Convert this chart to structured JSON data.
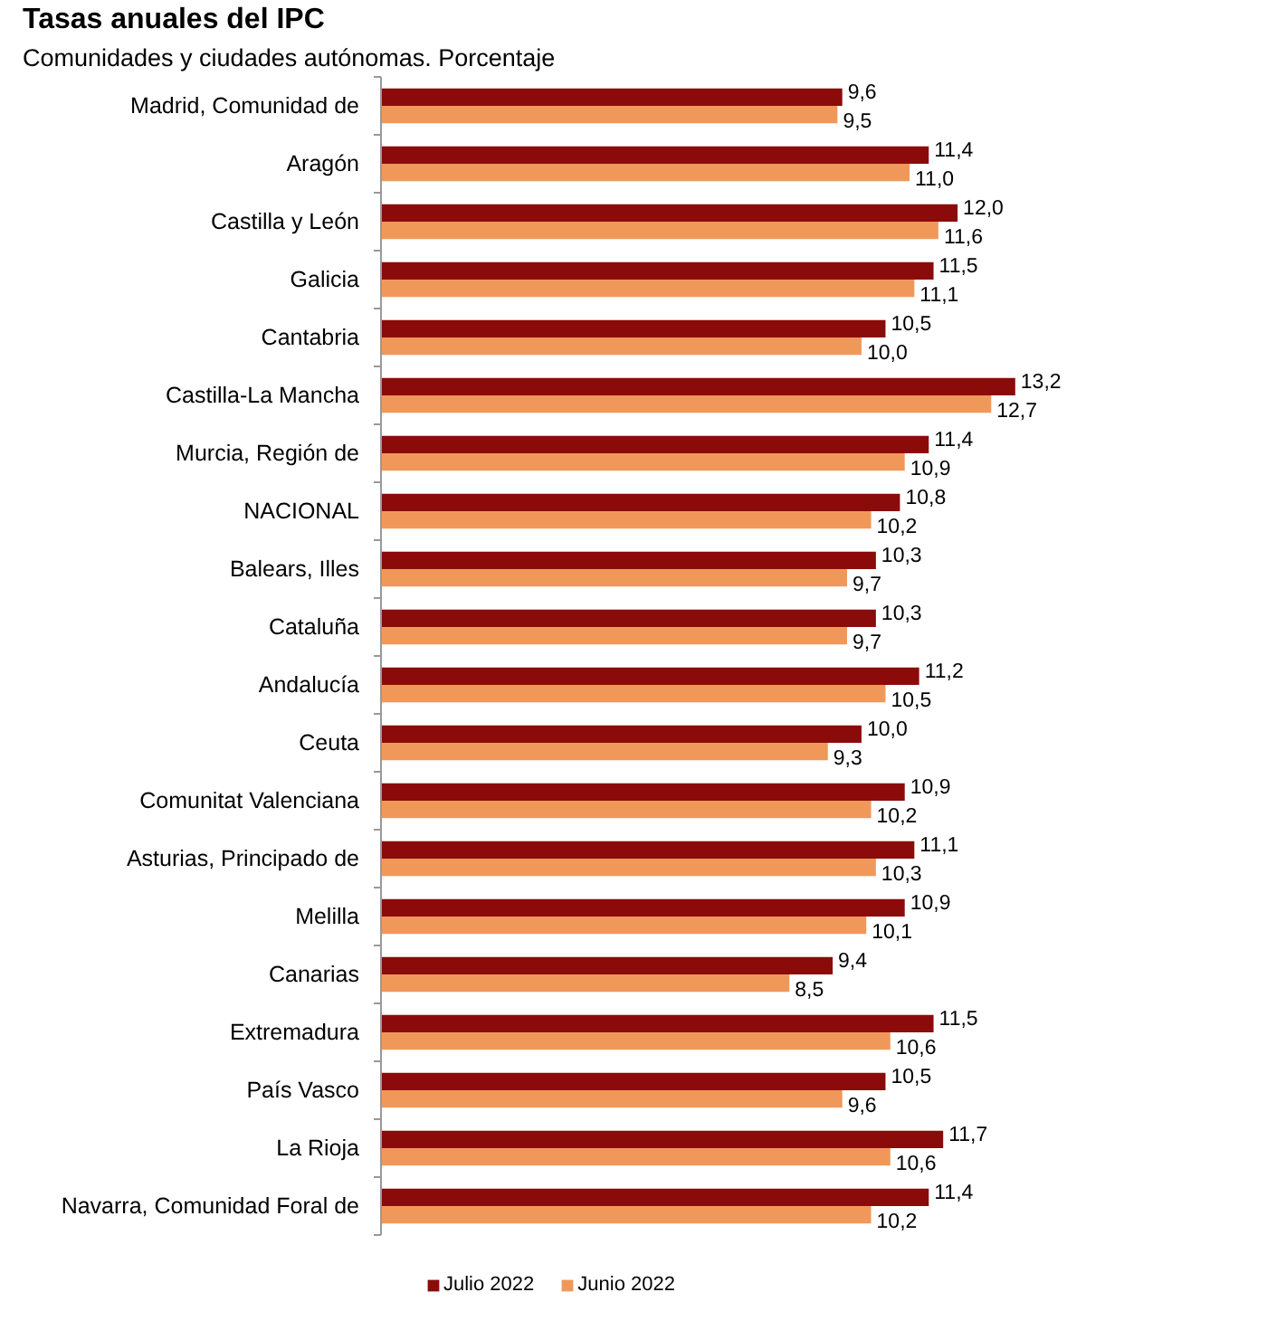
{
  "chart_data": {
    "type": "bar",
    "orientation": "horizontal",
    "title": "Tasas anuales del IPC",
    "subtitle": "Comunidades y ciudades autónomas. Porcentaje",
    "categories": [
      "Madrid, Comunidad de",
      "Aragón",
      "Castilla y León",
      "Galicia",
      "Cantabria",
      "Castilla-La Mancha",
      "Murcia, Región de",
      "NACIONAL",
      "Balears, Illes",
      "Cataluña",
      "Andalucía",
      "Ceuta",
      "Comunitat Valenciana",
      "Asturias, Principado de",
      "Melilla",
      "Canarias",
      "Extremadura",
      "País Vasco",
      "La Rioja",
      "Navarra, Comunidad Foral de"
    ],
    "series": [
      {
        "name": "Julio 2022",
        "color": "#8b0b0b",
        "values": [
          9.6,
          11.4,
          12.0,
          11.5,
          10.5,
          13.2,
          11.4,
          10.8,
          10.3,
          10.3,
          11.2,
          10.0,
          10.9,
          11.1,
          10.9,
          9.4,
          11.5,
          10.5,
          11.7,
          11.4
        ],
        "value_labels": [
          "9,6",
          "11,4",
          "12,0",
          "11,5",
          "10,5",
          "13,2",
          "11,4",
          "10,8",
          "10,3",
          "10,3",
          "11,2",
          "10,0",
          "10,9",
          "11,1",
          "10,9",
          "9,4",
          "11,5",
          "10,5",
          "11,7",
          "11,4"
        ]
      },
      {
        "name": "Junio 2022",
        "color": "#f0985a",
        "values": [
          9.5,
          11.0,
          11.6,
          11.1,
          10.0,
          12.7,
          10.9,
          10.2,
          9.7,
          9.7,
          10.5,
          9.3,
          10.2,
          10.3,
          10.1,
          8.5,
          10.6,
          9.6,
          10.6,
          10.2
        ],
        "value_labels": [
          "9,5",
          "11,0",
          "11,6",
          "11,1",
          "10,0",
          "12,7",
          "10,9",
          "10,2",
          "9,7",
          "9,7",
          "10,5",
          "9,3",
          "10,2",
          "10,3",
          "10,1",
          "8,5",
          "10,6",
          "9,6",
          "10,6",
          "10,2"
        ]
      }
    ],
    "tick_labels": "y",
    "grid": false,
    "legend": "bottom"
  }
}
